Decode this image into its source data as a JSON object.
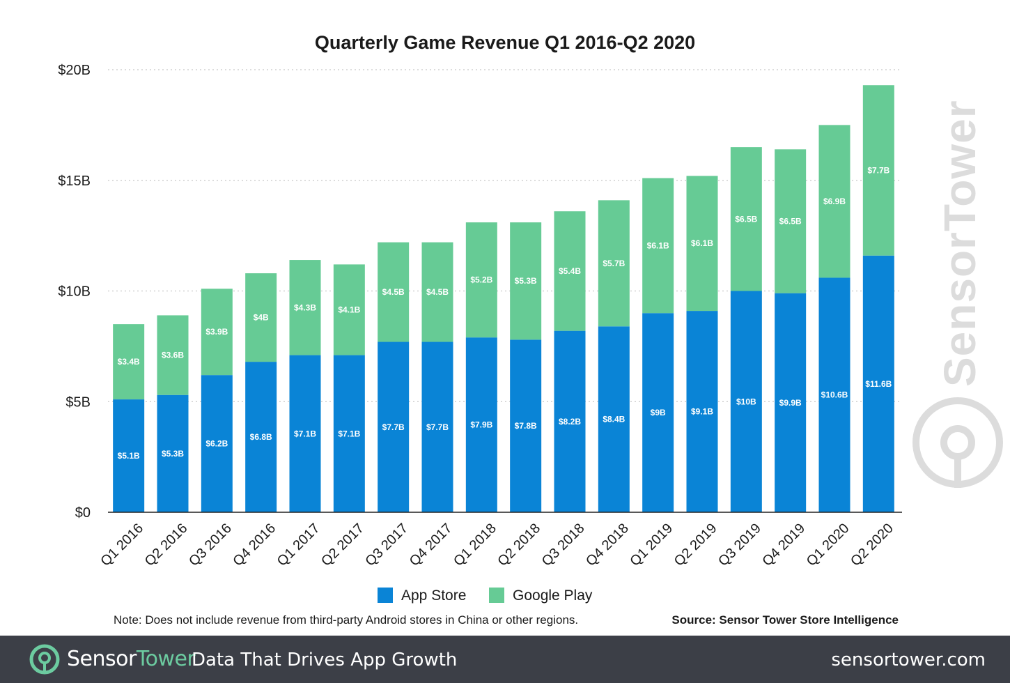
{
  "chart_data": {
    "type": "bar",
    "stacked": true,
    "title": "Quarterly Game Revenue Q1 2016-Q2 2020",
    "categories": [
      "Q1 2016",
      "Q2 2016",
      "Q3 2016",
      "Q4 2016",
      "Q1 2017",
      "Q2 2017",
      "Q3 2017",
      "Q4 2017",
      "Q1 2018",
      "Q2 2018",
      "Q3 2018",
      "Q4 2018",
      "Q1 2019",
      "Q2 2019",
      "Q3 2019",
      "Q4 2019",
      "Q1 2020",
      "Q2 2020"
    ],
    "series": [
      {
        "name": "App Store",
        "color": "#0a84d6",
        "values": [
          5.1,
          5.3,
          6.2,
          6.8,
          7.1,
          7.1,
          7.7,
          7.7,
          7.9,
          7.8,
          8.2,
          8.4,
          9.0,
          9.1,
          10.0,
          9.9,
          10.6,
          11.6
        ],
        "labels": [
          "$5.1B",
          "$5.3B",
          "$6.2B",
          "$6.8B",
          "$7.1B",
          "$7.1B",
          "$7.7B",
          "$7.7B",
          "$7.9B",
          "$7.8B",
          "$8.2B",
          "$8.4B",
          "$9B",
          "$9.1B",
          "$10B",
          "$9.9B",
          "$10.6B",
          "$11.6B"
        ]
      },
      {
        "name": "Google Play",
        "color": "#66cb95",
        "values": [
          3.4,
          3.6,
          3.9,
          4.0,
          4.3,
          4.1,
          4.5,
          4.5,
          5.2,
          5.3,
          5.4,
          5.7,
          6.1,
          6.1,
          6.5,
          6.5,
          6.9,
          7.7
        ],
        "labels": [
          "$3.4B",
          "$3.6B",
          "$3.9B",
          "$4B",
          "$4.3B",
          "$4.1B",
          "$4.5B",
          "$4.5B",
          "$5.2B",
          "$5.3B",
          "$5.4B",
          "$5.7B",
          "$6.1B",
          "$6.1B",
          "$6.5B",
          "$6.5B",
          "$6.9B",
          "$7.7B"
        ]
      }
    ],
    "y_ticks": [
      {
        "value": 0,
        "label": "$0"
      },
      {
        "value": 5,
        "label": "$5B"
      },
      {
        "value": 10,
        "label": "$10B"
      },
      {
        "value": 15,
        "label": "$15B"
      },
      {
        "value": 20,
        "label": "$20B"
      }
    ],
    "ylim": [
      0,
      20
    ],
    "grid": true,
    "legend_position": "bottom",
    "note": "Note: Does not include revenue from third-party Android stores in China or other regions.",
    "source": "Source: Sensor Tower Store Intelligence"
  },
  "watermark": {
    "text": "SensorTower",
    "color": "#dcdcdc"
  },
  "footer": {
    "brand_part1": "Sensor",
    "brand_part2": "Tower",
    "tagline": "Data That Drives App Growth",
    "website": "sensortower.com",
    "background": "#3c3f47",
    "accent": "#6ccba0"
  }
}
